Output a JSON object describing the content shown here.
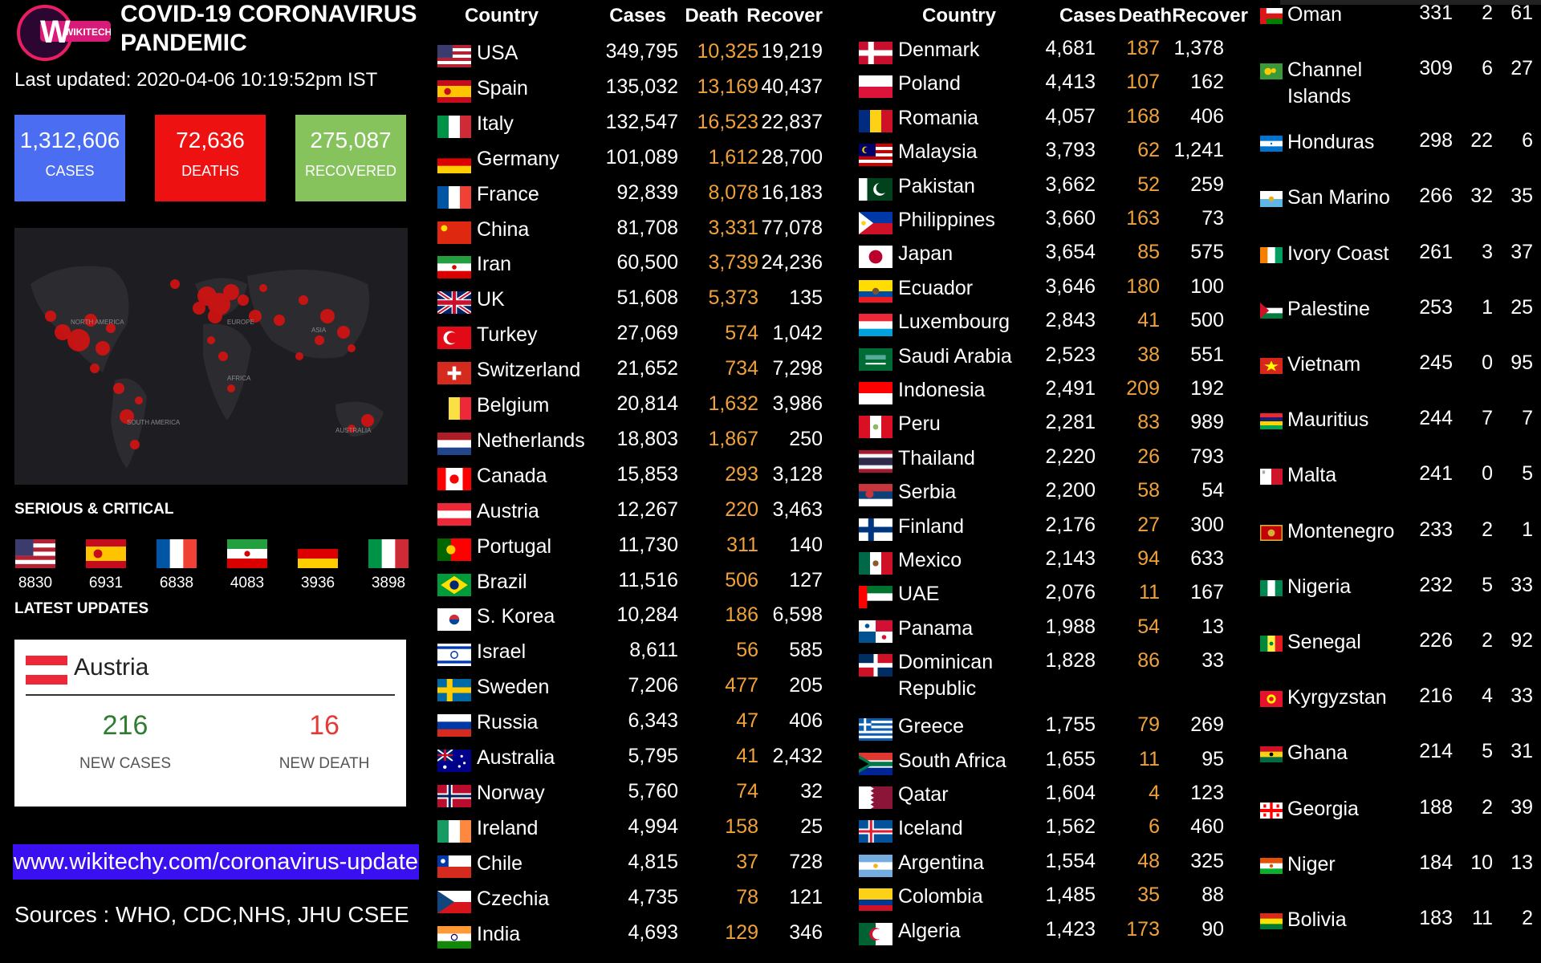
{
  "header": {
    "logo_text": "WIKITECHY",
    "title_line1": "COVID-19 CORONAVIRUS",
    "title_line2": "PANDEMIC",
    "last_updated": "Last updated: 2020-04-06 10:19:52pm IST"
  },
  "stats": {
    "cases": {
      "value": "1,312,606",
      "label": "CASES",
      "color": "#4a6df1"
    },
    "deaths": {
      "value": "72,636",
      "label": "DEATHS",
      "color": "#ee1111"
    },
    "recovered": {
      "value": "275,087",
      "label": "RECOVERED",
      "color": "#86c35c"
    }
  },
  "map_labels": [
    "NORTH AMERICA",
    "EUROPE",
    "ASIA",
    "AFRICA",
    "SOUTH AMERICA",
    "AUSTRALIA"
  ],
  "serious": {
    "title": "SERIOUS & CRITICAL",
    "items": [
      {
        "flag": "us",
        "value": "8830"
      },
      {
        "flag": "es",
        "value": "6931"
      },
      {
        "flag": "fr",
        "value": "6838"
      },
      {
        "flag": "ir",
        "value": "4083"
      },
      {
        "flag": "de",
        "value": "3936"
      },
      {
        "flag": "it",
        "value": "3898"
      }
    ]
  },
  "latest": {
    "title": "LATEST UPDATES",
    "country": "Austria",
    "new_cases": "216",
    "new_cases_label": "NEW CASES",
    "new_death": "16",
    "new_death_label": "NEW DEATH"
  },
  "website": "www.wikitechy.com/coronavirus-update",
  "sources": "Sources : WHO, CDC,NHS, JHU CSEE",
  "headers": {
    "country": "Country",
    "cases": "Cases",
    "death": "Death",
    "recover": "Recover"
  },
  "colors": {
    "death_accent": "#f0a13a",
    "background": "#000000",
    "website_bg": "#3b10f0"
  },
  "table1": [
    {
      "flag": "us",
      "country": "USA",
      "cases": "349,795",
      "death": "10,325",
      "recover": "19,219"
    },
    {
      "flag": "es",
      "country": "Spain",
      "cases": "135,032",
      "death": "13,169",
      "recover": "40,437"
    },
    {
      "flag": "it",
      "country": "Italy",
      "cases": "132,547",
      "death": "16,523",
      "recover": "22,837"
    },
    {
      "flag": "de",
      "country": "Germany",
      "cases": "101,089",
      "death": "1,612",
      "recover": "28,700"
    },
    {
      "flag": "fr",
      "country": "France",
      "cases": "92,839",
      "death": "8,078",
      "recover": "16,183"
    },
    {
      "flag": "cn",
      "country": "China",
      "cases": "81,708",
      "death": "3,331",
      "recover": "77,078"
    },
    {
      "flag": "ir",
      "country": "Iran",
      "cases": "60,500",
      "death": "3,739",
      "recover": "24,236"
    },
    {
      "flag": "uk",
      "country": "UK",
      "cases": "51,608",
      "death": "5,373",
      "recover": "135"
    },
    {
      "flag": "tr",
      "country": "Turkey",
      "cases": "27,069",
      "death": "574",
      "recover": "1,042"
    },
    {
      "flag": "ch",
      "country": "Switzerland",
      "cases": "21,652",
      "death": "734",
      "recover": "7,298"
    },
    {
      "flag": "be",
      "country": "Belgium",
      "cases": "20,814",
      "death": "1,632",
      "recover": "3,986"
    },
    {
      "flag": "nl",
      "country": "Netherlands",
      "cases": "18,803",
      "death": "1,867",
      "recover": "250"
    },
    {
      "flag": "ca",
      "country": "Canada",
      "cases": "15,853",
      "death": "293",
      "recover": "3,128"
    },
    {
      "flag": "at",
      "country": "Austria",
      "cases": "12,267",
      "death": "220",
      "recover": "3,463"
    },
    {
      "flag": "pt",
      "country": "Portugal",
      "cases": "11,730",
      "death": "311",
      "recover": "140"
    },
    {
      "flag": "br",
      "country": "Brazil",
      "cases": "11,516",
      "death": "506",
      "recover": "127"
    },
    {
      "flag": "kr",
      "country": "S. Korea",
      "cases": "10,284",
      "death": "186",
      "recover": "6,598"
    },
    {
      "flag": "il",
      "country": "Israel",
      "cases": "8,611",
      "death": "56",
      "recover": "585"
    },
    {
      "flag": "se",
      "country": "Sweden",
      "cases": "7,206",
      "death": "477",
      "recover": "205"
    },
    {
      "flag": "ru",
      "country": "Russia",
      "cases": "6,343",
      "death": "47",
      "recover": "406"
    },
    {
      "flag": "au",
      "country": "Australia",
      "cases": "5,795",
      "death": "41",
      "recover": "2,432"
    },
    {
      "flag": "no",
      "country": "Norway",
      "cases": "5,760",
      "death": "74",
      "recover": "32"
    },
    {
      "flag": "ie",
      "country": "Ireland",
      "cases": "4,994",
      "death": "158",
      "recover": "25"
    },
    {
      "flag": "cl",
      "country": "Chile",
      "cases": "4,815",
      "death": "37",
      "recover": "728"
    },
    {
      "flag": "cz",
      "country": "Czechia",
      "cases": "4,735",
      "death": "78",
      "recover": "121"
    },
    {
      "flag": "in",
      "country": "India",
      "cases": "4,693",
      "death": "129",
      "recover": "346"
    }
  ],
  "table2": [
    {
      "flag": "dk",
      "country": "Denmark",
      "cases": "4,681",
      "death": "187",
      "recover": "1,378"
    },
    {
      "flag": "pl",
      "country": "Poland",
      "cases": "4,413",
      "death": "107",
      "recover": "162"
    },
    {
      "flag": "ro",
      "country": "Romania",
      "cases": "4,057",
      "death": "168",
      "recover": "406"
    },
    {
      "flag": "my",
      "country": "Malaysia",
      "cases": "3,793",
      "death": "62",
      "recover": "1,241"
    },
    {
      "flag": "pk",
      "country": "Pakistan",
      "cases": "3,662",
      "death": "52",
      "recover": "259"
    },
    {
      "flag": "ph",
      "country": "Philippines",
      "cases": "3,660",
      "death": "163",
      "recover": "73"
    },
    {
      "flag": "jp",
      "country": "Japan",
      "cases": "3,654",
      "death": "85",
      "recover": "575"
    },
    {
      "flag": "ec",
      "country": "Ecuador",
      "cases": "3,646",
      "death": "180",
      "recover": "100"
    },
    {
      "flag": "lu",
      "country": "Luxembourg",
      "cases": "2,843",
      "death": "41",
      "recover": "500"
    },
    {
      "flag": "sa",
      "country": "Saudi Arabia",
      "cases": "2,523",
      "death": "38",
      "recover": "551"
    },
    {
      "flag": "id",
      "country": "Indonesia",
      "cases": "2,491",
      "death": "209",
      "recover": "192"
    },
    {
      "flag": "pe",
      "country": "Peru",
      "cases": "2,281",
      "death": "83",
      "recover": "989"
    },
    {
      "flag": "th",
      "country": "Thailand",
      "cases": "2,220",
      "death": "26",
      "recover": "793"
    },
    {
      "flag": "rs",
      "country": "Serbia",
      "cases": "2,200",
      "death": "58",
      "recover": "54"
    },
    {
      "flag": "fi",
      "country": "Finland",
      "cases": "2,176",
      "death": "27",
      "recover": "300"
    },
    {
      "flag": "mx",
      "country": "Mexico",
      "cases": "2,143",
      "death": "94",
      "recover": "633"
    },
    {
      "flag": "ae",
      "country": "UAE",
      "cases": "2,076",
      "death": "11",
      "recover": "167"
    },
    {
      "flag": "pa",
      "country": "Panama",
      "cases": "1,988",
      "death": "54",
      "recover": "13"
    },
    {
      "flag": "do",
      "country": "Dominican Republic",
      "cases": "1,828",
      "death": "86",
      "recover": "33"
    },
    {
      "flag": "gr",
      "country": "Greece",
      "cases": "1,755",
      "death": "79",
      "recover": "269"
    },
    {
      "flag": "za",
      "country": "South Africa",
      "cases": "1,655",
      "death": "11",
      "recover": "95"
    },
    {
      "flag": "qa",
      "country": "Qatar",
      "cases": "1,604",
      "death": "4",
      "recover": "123"
    },
    {
      "flag": "is",
      "country": "Iceland",
      "cases": "1,562",
      "death": "6",
      "recover": "460"
    },
    {
      "flag": "ar",
      "country": "Argentina",
      "cases": "1,554",
      "death": "48",
      "recover": "325"
    },
    {
      "flag": "co",
      "country": "Colombia",
      "cases": "1,485",
      "death": "35",
      "recover": "88"
    },
    {
      "flag": "dz",
      "country": "Algeria",
      "cases": "1,423",
      "death": "173",
      "recover": "90"
    }
  ],
  "table3": [
    {
      "flag": "om",
      "country": "Oman",
      "cases": "331",
      "death": "2",
      "recover": "61"
    },
    {
      "flag": "gg",
      "country": "Channel Islands",
      "cases": "309",
      "death": "6",
      "recover": "27"
    },
    {
      "flag": "hn",
      "country": "Honduras",
      "cases": "298",
      "death": "22",
      "recover": "6"
    },
    {
      "flag": "sm",
      "country": "San Marino",
      "cases": "266",
      "death": "32",
      "recover": "35"
    },
    {
      "flag": "ci",
      "country": "Ivory Coast",
      "cases": "261",
      "death": "3",
      "recover": "37"
    },
    {
      "flag": "ps",
      "country": "Palestine",
      "cases": "253",
      "death": "1",
      "recover": "25"
    },
    {
      "flag": "vn",
      "country": "Vietnam",
      "cases": "245",
      "death": "0",
      "recover": "95"
    },
    {
      "flag": "mu",
      "country": "Mauritius",
      "cases": "244",
      "death": "7",
      "recover": "7"
    },
    {
      "flag": "mt",
      "country": "Malta",
      "cases": "241",
      "death": "0",
      "recover": "5"
    },
    {
      "flag": "me",
      "country": "Montenegro",
      "cases": "233",
      "death": "2",
      "recover": "1"
    },
    {
      "flag": "ng",
      "country": "Nigeria",
      "cases": "232",
      "death": "5",
      "recover": "33"
    },
    {
      "flag": "sn",
      "country": "Senegal",
      "cases": "226",
      "death": "2",
      "recover": "92"
    },
    {
      "flag": "kg",
      "country": "Kyrgyzstan",
      "cases": "216",
      "death": "4",
      "recover": "33"
    },
    {
      "flag": "gh",
      "country": "Ghana",
      "cases": "214",
      "death": "5",
      "recover": "31"
    },
    {
      "flag": "ge",
      "country": "Georgia",
      "cases": "188",
      "death": "2",
      "recover": "39"
    },
    {
      "flag": "ne",
      "country": "Niger",
      "cases": "184",
      "death": "10",
      "recover": "13"
    },
    {
      "flag": "bo",
      "country": "Bolivia",
      "cases": "183",
      "death": "11",
      "recover": "2"
    }
  ]
}
